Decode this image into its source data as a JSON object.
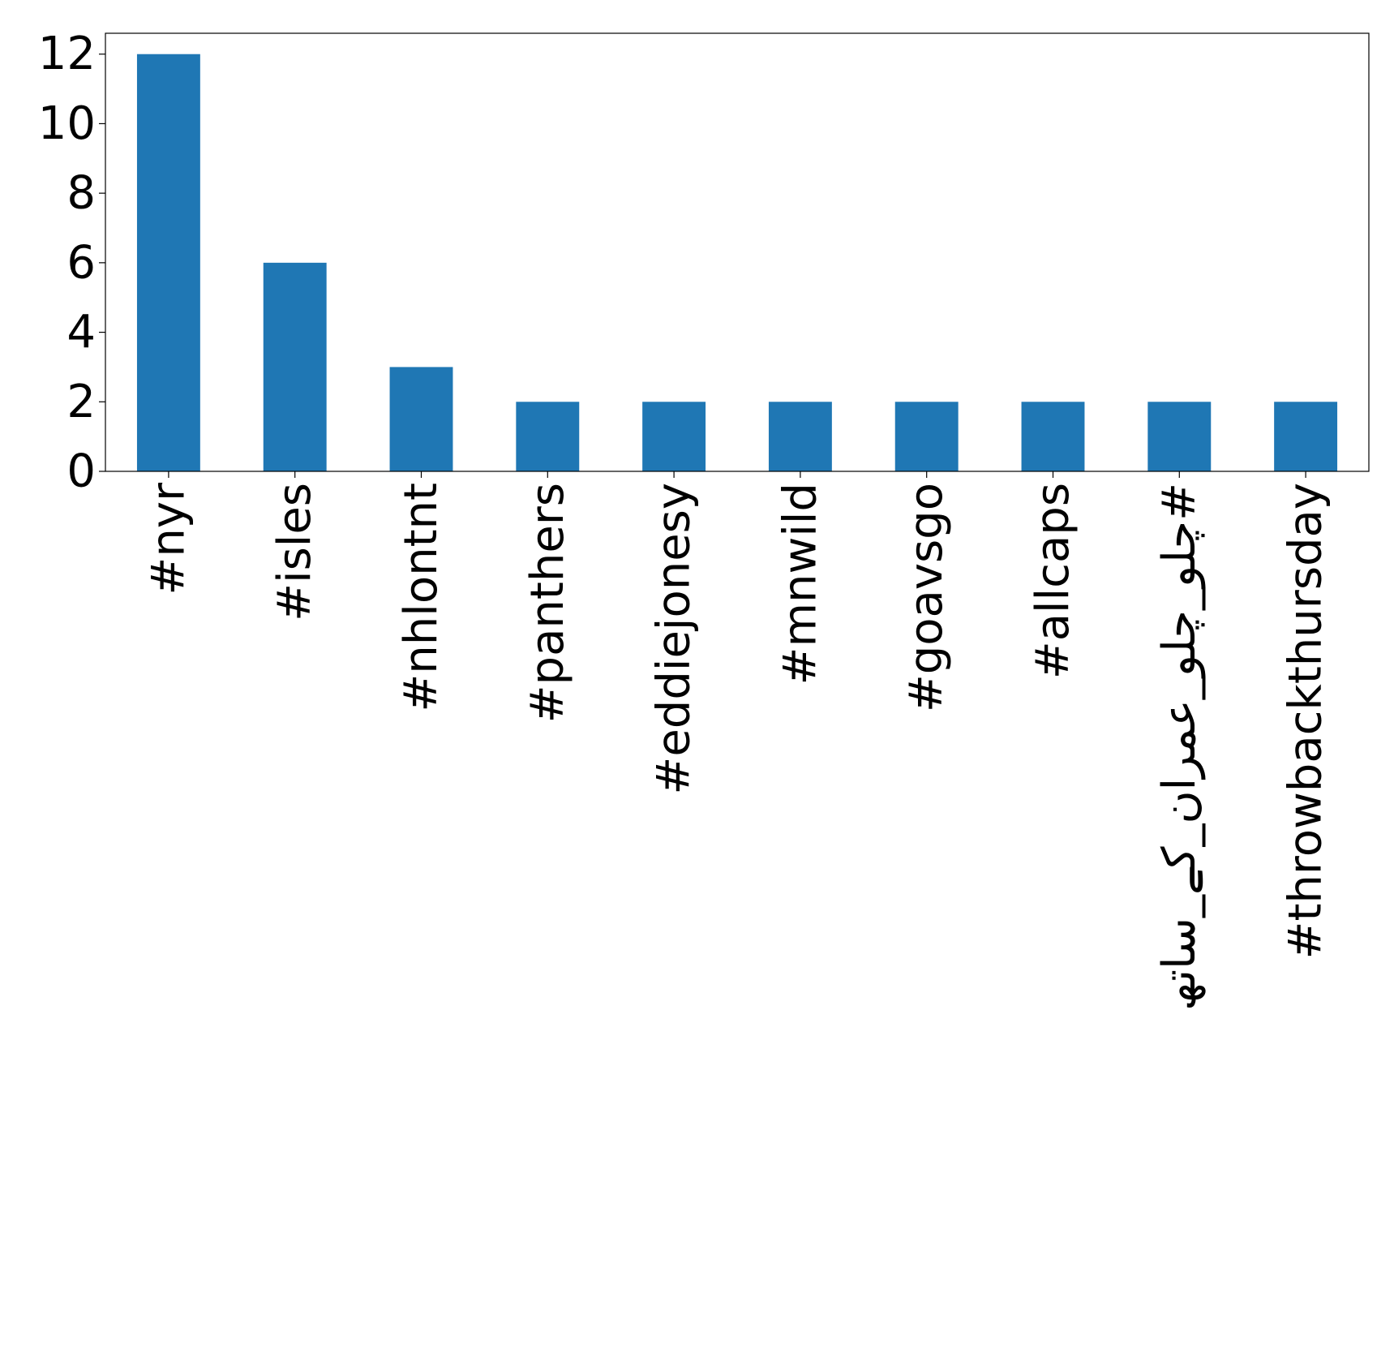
{
  "chart_data": {
    "type": "bar",
    "title": "",
    "xlabel": "",
    "ylabel": "",
    "categories": [
      "#nyr",
      "#isles",
      "#nhlontnt",
      "#panthers",
      "#eddiejonesy",
      "#mnwild",
      "#goavsgo",
      "#allcaps",
      "#چلو_چلو_عمران_کے_ساتھ",
      "#throwbackthursday"
    ],
    "values": [
      12,
      6,
      3,
      2,
      2,
      2,
      2,
      2,
      2,
      2
    ],
    "ylim": [
      0,
      12.6
    ],
    "yticks": [
      0,
      2,
      4,
      6,
      8,
      10,
      12
    ],
    "grid": false,
    "legend": "none",
    "bar_color": "#1f77b4",
    "x_tick_rotation": "vertical"
  }
}
